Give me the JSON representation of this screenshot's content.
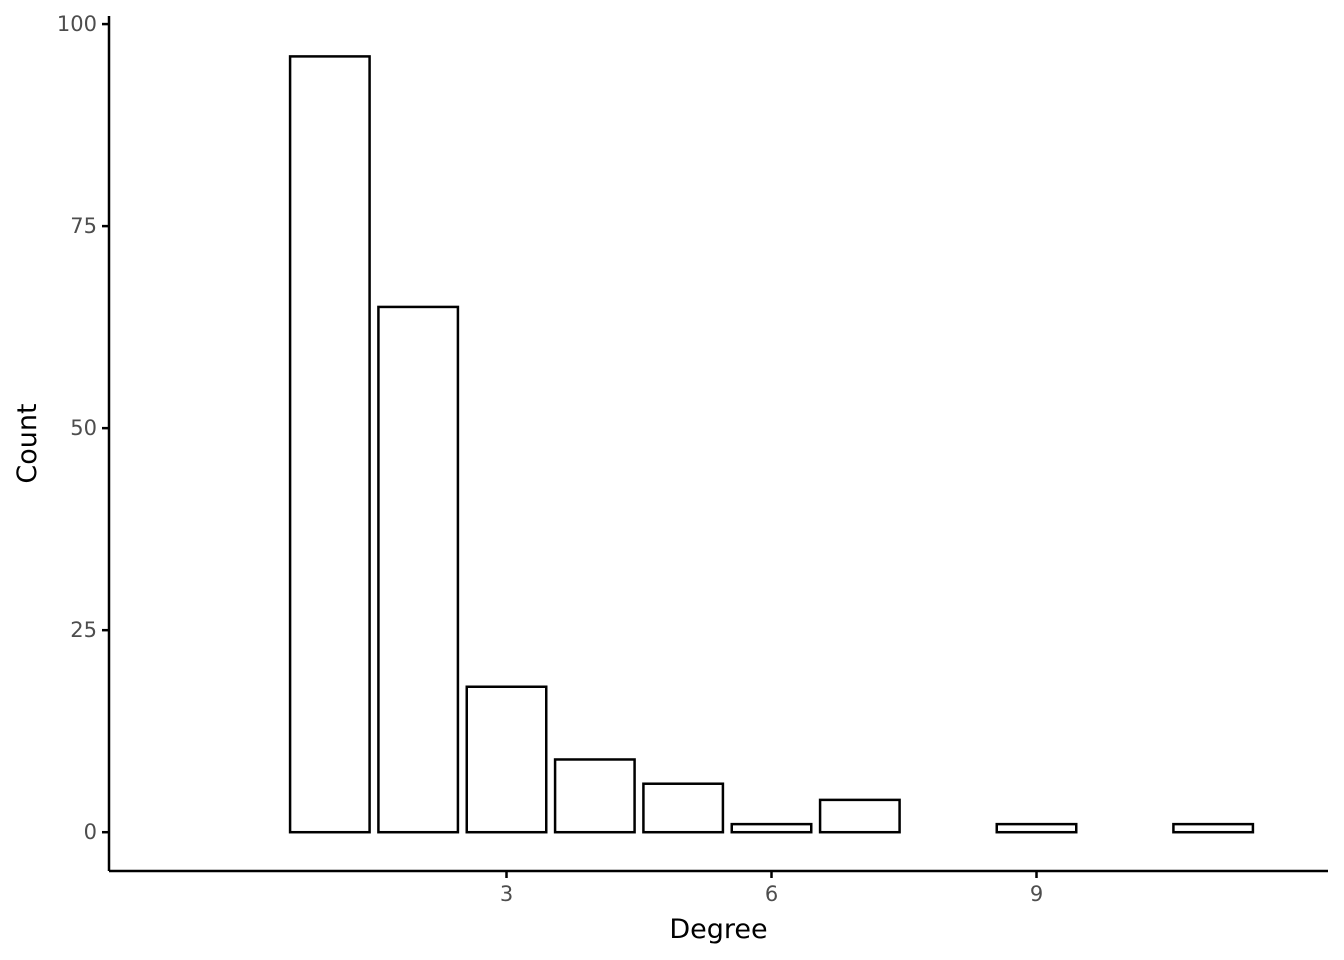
{
  "chart_data": {
    "type": "bar",
    "title": "",
    "xlabel": "Degree",
    "ylabel": "Count",
    "x": [
      1,
      2,
      3,
      4,
      5,
      6,
      7,
      9,
      11
    ],
    "values": [
      96,
      65,
      18,
      9,
      6,
      1,
      4,
      1,
      1
    ],
    "xlim": [
      -1.5,
      12.3
    ],
    "ylim": [
      -4.8,
      101
    ],
    "x_ticks": [
      3,
      6,
      9
    ],
    "y_ticks": [
      0,
      25,
      50,
      75,
      100
    ],
    "grid": false,
    "legend": "none",
    "colors": {
      "bar_fill": "#ffffff",
      "bar_stroke": "#000000",
      "tick_text": "#4d4d4d"
    }
  }
}
